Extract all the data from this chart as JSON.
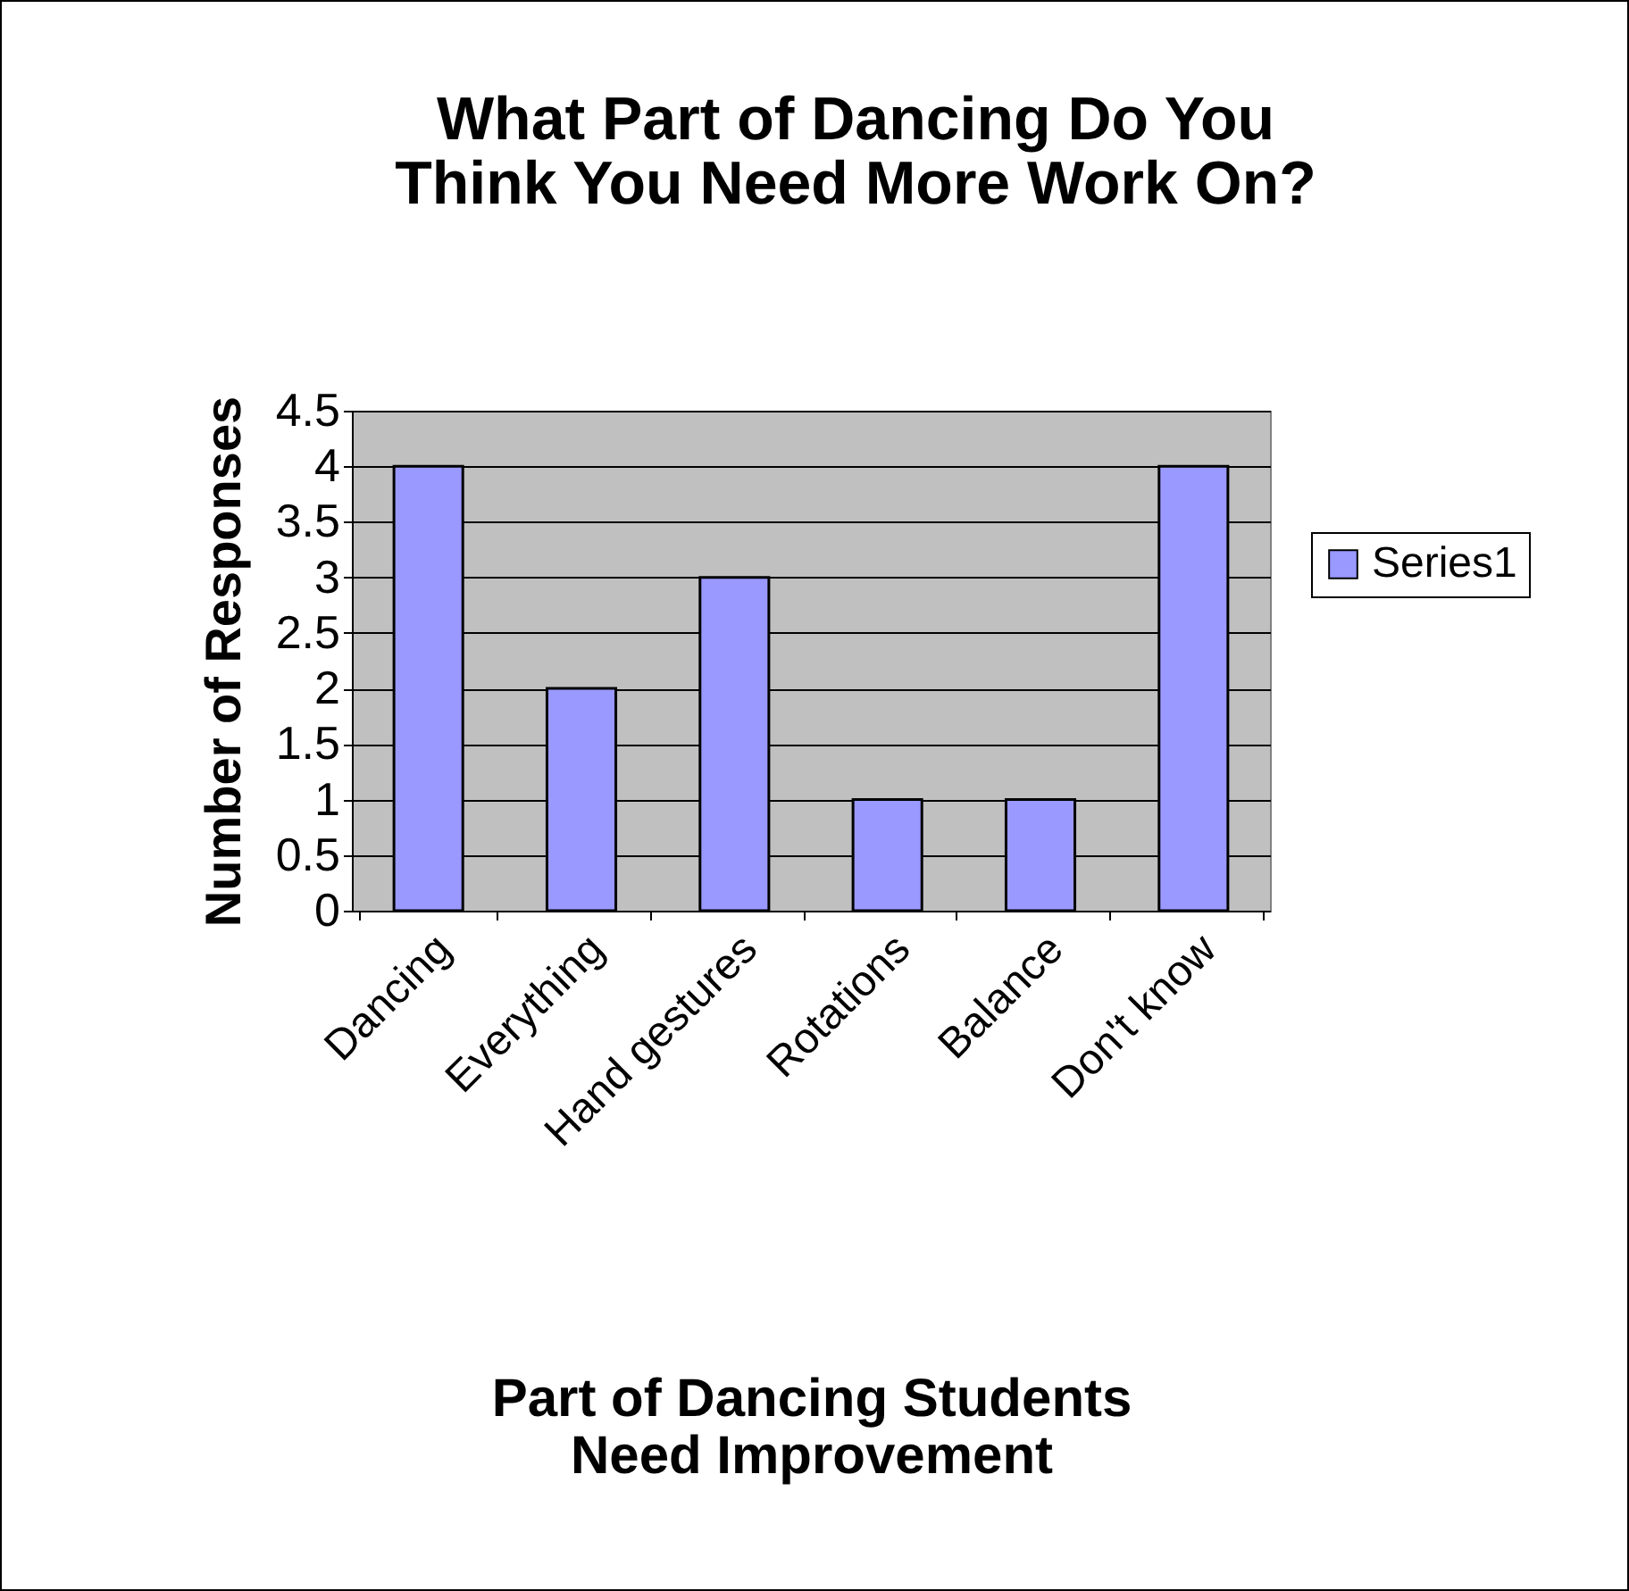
{
  "chart_data": {
    "type": "bar",
    "title": "What Part of Dancing Do You\nThink You Need More Work On?",
    "xlabel": "Part of Dancing Students\nNeed Improvement",
    "ylabel": "Number of Responses",
    "categories": [
      "Dancing",
      "Everything",
      "Hand gestures",
      "Rotations",
      "Balance",
      "Don't know"
    ],
    "series": [
      {
        "name": "Series1",
        "color": "#9999ff",
        "values": [
          4,
          2,
          3,
          1,
          1,
          4
        ]
      }
    ],
    "ylim": [
      0,
      4.5
    ],
    "yticks": [
      0,
      0.5,
      1,
      1.5,
      2,
      2.5,
      3,
      3.5,
      4,
      4.5
    ],
    "grid": "y",
    "legend": "right"
  }
}
